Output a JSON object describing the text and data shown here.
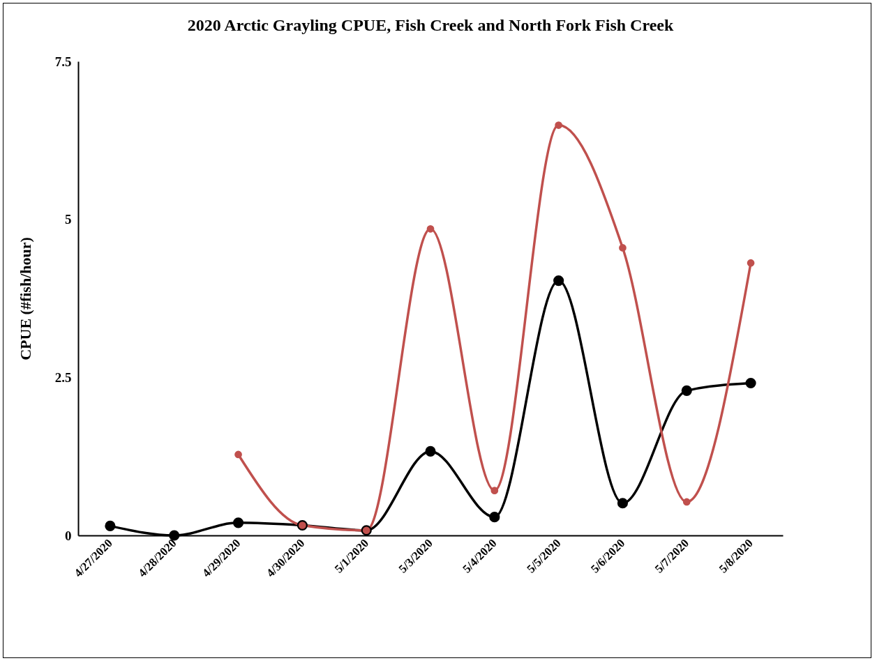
{
  "chart_data": {
    "type": "line",
    "title": "2020 Arctic Grayling CPUE, Fish Creek and North Fork Fish Creek",
    "ylabel": "CPUE (#fish/hour)",
    "categories": [
      "4/27/2020",
      "4/28/2020",
      "4/29/2020",
      "4/30/2020",
      "5/1/2020",
      "5/3/2020",
      "5/4/2020",
      "5/5/2020",
      "5/6/2020",
      "5/7/2020",
      "5/8/2020"
    ],
    "series": [
      {
        "color": "#000000",
        "values": [
          0.15,
          0,
          0.2,
          0.16,
          0.08,
          1.33,
          0.29,
          4.03,
          0.51,
          2.29,
          2.41
        ]
      },
      {
        "color": "#c0504d",
        "values": [
          null,
          null,
          1.28,
          0.16,
          0.08,
          4.85,
          0.71,
          6.49,
          4.55,
          0.53,
          4.31
        ]
      }
    ],
    "ylim": [
      0,
      7.5
    ],
    "yticks": [
      0,
      2.5,
      5,
      7.5
    ],
    "grid": false,
    "legend": false,
    "marker": "circle",
    "line_style": "solid"
  }
}
